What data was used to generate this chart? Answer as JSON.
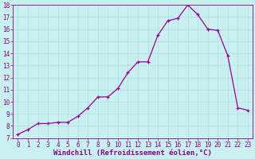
{
  "x": [
    0,
    1,
    2,
    3,
    4,
    5,
    6,
    7,
    8,
    9,
    10,
    11,
    12,
    13,
    14,
    15,
    16,
    17,
    18,
    19,
    20,
    21,
    22,
    23
  ],
  "y": [
    7.3,
    7.7,
    8.2,
    8.2,
    8.3,
    8.3,
    8.8,
    9.5,
    10.4,
    10.4,
    11.1,
    12.4,
    13.3,
    13.3,
    15.5,
    16.7,
    16.9,
    18.0,
    17.2,
    16.0,
    15.9,
    13.8,
    9.5,
    9.3
  ],
  "line_color": "#990099",
  "marker": "+",
  "bg_color": "#c8f0f0",
  "grid_color": "#b0dede",
  "xlabel": "Windchill (Refroidissement éolien,°C)",
  "ylim": [
    7,
    18
  ],
  "xlim": [
    -0.5,
    23.5
  ],
  "yticks": [
    7,
    8,
    9,
    10,
    11,
    12,
    13,
    14,
    15,
    16,
    17,
    18
  ],
  "xticks": [
    0,
    1,
    2,
    3,
    4,
    5,
    6,
    7,
    8,
    9,
    10,
    11,
    12,
    13,
    14,
    15,
    16,
    17,
    18,
    19,
    20,
    21,
    22,
    23
  ],
  "tick_fontsize": 5.5,
  "xlabel_fontsize": 6.5,
  "axis_color": "#880088",
  "spine_color": "#880088",
  "marker_size": 3.5,
  "line_width": 0.9
}
